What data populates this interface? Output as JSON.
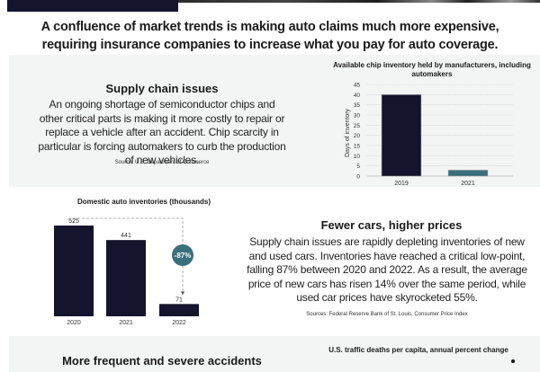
{
  "header": {
    "intro_line1": "A confluence of market trends is making auto claims much more expensive,",
    "intro_line2": "requiring insurance companies to increase what you pay for auto coverage."
  },
  "sections": [
    {
      "title": "Supply chain issues",
      "body": "An ongoing shortage of semiconductor chips and other critical parts is making it more costly to repair or replace a vehicle after an accident. Chip scarcity in particular is forcing automakers to curb the production of new vehicles.",
      "source": "Source: U.S. Department of Commerce"
    },
    {
      "title": "Fewer cars, higher prices",
      "body": "Supply chain issues are rapidly depleting inventories of new and used cars. Inventories have reached a critical low-point, falling 87% between 2020 and 2022. As a result, the average price of new cars has risen 14% over the same period, while used car prices have skyrocketed 55%.",
      "source": "Sources: Federal Reserve Bank of St. Louis, Consumer Price Index"
    },
    {
      "title": "More frequent and severe accidents"
    }
  ],
  "colors": {
    "navy": "#15142e",
    "teal": "#3a6f7c",
    "panel": "#f3f4f4"
  },
  "chart_data": [
    {
      "type": "bar",
      "title": "Available chip inventory held by manufacturers, including automakers",
      "categories": [
        "2019",
        "2021"
      ],
      "values": [
        40,
        3
      ],
      "colors": [
        "#15142e",
        "#3a6f7c"
      ],
      "xlabel": "",
      "ylabel": "Days of inventory",
      "ylim": [
        0,
        45
      ],
      "yticks": [
        0,
        5,
        10,
        15,
        20,
        25,
        30,
        35,
        40,
        45
      ],
      "grid": true
    },
    {
      "type": "bar",
      "title": "Domestic auto inventories (thousands)",
      "categories": [
        "2020",
        "2021",
        "2022"
      ],
      "values": [
        525,
        441,
        71
      ],
      "data_labels": [
        "525",
        "441",
        "71"
      ],
      "annotation": "-87%",
      "ylim": [
        0,
        525
      ],
      "grid": false
    },
    {
      "type": "line",
      "title": "U.S. traffic deaths per capita, annual percent change"
    }
  ]
}
